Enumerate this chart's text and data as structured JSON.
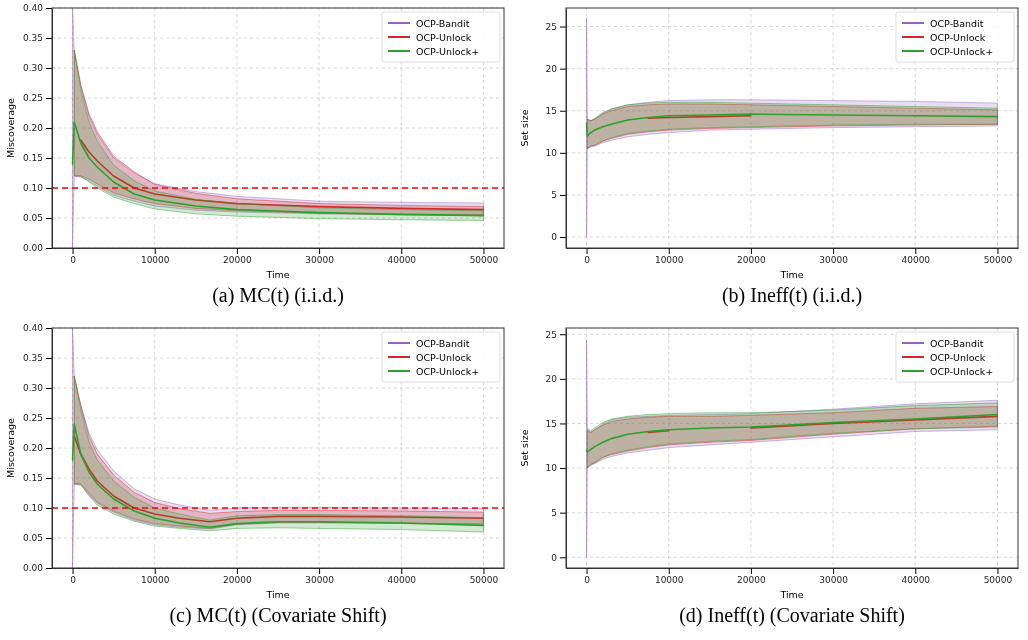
{
  "chart_data": [
    {
      "type": "line",
      "title": "(a) MC(t) (i.i.d.)",
      "xlabel": "Time",
      "ylabel": "Miscoverage",
      "xlim": [
        -2500,
        52500
      ],
      "xticks": [
        0,
        10000,
        20000,
        30000,
        40000,
        50000
      ],
      "ylim": [
        0,
        0.4
      ],
      "yticks": [
        {
          "value": 0,
          "label": "0.00"
        },
        {
          "value": 0.05,
          "label": "0.05"
        },
        {
          "value": 0.1,
          "label": "0.10"
        },
        {
          "value": 0.15,
          "label": "0.15"
        },
        {
          "value": 0.2,
          "label": "0.20"
        },
        {
          "value": 0.25,
          "label": "0.25"
        },
        {
          "value": 0.3,
          "label": "0.30"
        },
        {
          "value": 0.35,
          "label": "0.35"
        },
        {
          "value": 0.4,
          "label": "0.40"
        }
      ],
      "grid": true,
      "legend": "top right",
      "ref_lines": [
        {
          "axis": "y",
          "value": 0.1,
          "color": "#ff0000",
          "line_style": "dashed"
        }
      ],
      "x": [
        0,
        200,
        1000,
        2000,
        3000,
        5000,
        7500,
        10000,
        15000,
        20000,
        30000,
        40000,
        50000
      ],
      "series": [
        {
          "name": "OCP-Bandit",
          "color": "#9467bd",
          "values": [
            null,
            null,
            null,
            null,
            null,
            null,
            null,
            null,
            null,
            null,
            null,
            null,
            null
          ],
          "lower": [
            0,
            0.12,
            0.118,
            0.112,
            0.103,
            0.088,
            0.078,
            0.07,
            0.063,
            0.06,
            0.057,
            0.055,
            0.054
          ],
          "upper": [
            0.4,
            0.33,
            0.27,
            0.22,
            0.19,
            0.15,
            0.125,
            0.107,
            0.094,
            0.086,
            0.078,
            0.076,
            0.075
          ]
        },
        {
          "name": "OCP-Unlock",
          "color": "#d62728",
          "values": [
            null,
            null,
            0.18,
            0.16,
            0.145,
            0.12,
            0.1,
            0.09,
            0.08,
            0.074,
            0.069,
            0.066,
            0.064
          ],
          "lower": [
            null,
            0.12,
            0.12,
            0.115,
            0.107,
            0.092,
            0.082,
            0.074,
            0.066,
            0.062,
            0.058,
            0.056,
            0.056
          ],
          "upper": [
            null,
            0.33,
            0.272,
            0.224,
            0.194,
            0.153,
            0.127,
            0.106,
            0.091,
            0.082,
            0.074,
            0.071,
            0.069
          ]
        },
        {
          "name": "OCP-Unlock+",
          "color": "#2ca02c",
          "values": [
            0.14,
            0.21,
            0.175,
            0.15,
            0.135,
            0.11,
            0.09,
            0.08,
            0.07,
            0.064,
            0.059,
            0.056,
            0.054
          ],
          "lower": [
            null,
            0.12,
            0.12,
            0.11,
            0.1,
            0.085,
            0.074,
            0.065,
            0.057,
            0.053,
            0.049,
            0.047,
            0.046
          ],
          "upper": [
            null,
            0.33,
            0.265,
            0.21,
            0.178,
            0.138,
            0.112,
            0.095,
            0.081,
            0.074,
            0.067,
            0.064,
            0.062
          ]
        }
      ]
    },
    {
      "type": "line",
      "title": "(b) Ineff(t) (i.i.d.)",
      "xlabel": "Time",
      "ylabel": "Set size",
      "xlim": [
        -2500,
        52500
      ],
      "xticks": [
        0,
        10000,
        20000,
        30000,
        40000,
        50000
      ],
      "ylim": [
        -1.3,
        27.2
      ],
      "yticks": [
        0,
        5,
        10,
        15,
        20,
        25
      ],
      "grid": true,
      "legend": "top right",
      "x": [
        0,
        100,
        500,
        1000,
        2000,
        3000,
        5000,
        7500,
        10000,
        15000,
        20000,
        30000,
        40000,
        50000
      ],
      "series": [
        {
          "name": "OCP-Bandit",
          "color": "#9467bd",
          "values": [
            null,
            null,
            null,
            null,
            null,
            null,
            null,
            null,
            null,
            null,
            null,
            null,
            null,
            null
          ],
          "lower": [
            0,
            10.5,
            10.7,
            10.8,
            11.2,
            11.5,
            11.9,
            12.2,
            12.4,
            12.7,
            12.8,
            13,
            13.1,
            13.2
          ],
          "upper": [
            26,
            14,
            13.8,
            14,
            14.7,
            15.2,
            15.7,
            16,
            16.2,
            16.3,
            16.3,
            16.2,
            16.1,
            15.9
          ]
        },
        {
          "name": "OCP-Unlock",
          "color": "#d62728",
          "values": [
            null,
            null,
            null,
            null,
            null,
            null,
            null,
            14.1,
            14.2,
            14.3,
            14.4,
            null,
            null,
            null
          ],
          "lower": [
            null,
            10.5,
            10.8,
            10.9,
            11.4,
            11.7,
            12.2,
            12.5,
            12.7,
            12.9,
            13,
            13.2,
            13.3,
            13.4
          ],
          "upper": [
            null,
            14,
            13.8,
            14,
            14.6,
            15,
            15.5,
            15.7,
            15.8,
            15.8,
            15.7,
            15.5,
            15.3,
            15.1
          ]
        },
        {
          "name": "OCP-Unlock+",
          "color": "#2ca02c",
          "values": [
            13.5,
            12,
            12.4,
            12.7,
            13.1,
            13.4,
            13.9,
            14.2,
            14.4,
            14.5,
            14.6,
            14.5,
            14.4,
            14.3
          ],
          "lower": [
            null,
            10.5,
            10.8,
            10.9,
            11.4,
            11.8,
            12.3,
            12.6,
            12.8,
            13,
            13.1,
            13.3,
            13.4,
            13.4
          ],
          "upper": [
            null,
            14,
            13.8,
            14.1,
            14.8,
            15.2,
            15.7,
            15.9,
            16,
            16,
            15.9,
            15.7,
            15.5,
            15.3
          ]
        }
      ]
    },
    {
      "type": "line",
      "title": "(c) MC(t) (Covariate Shift)",
      "xlabel": "Time",
      "ylabel": "Miscoverage",
      "xlim": [
        -2500,
        52500
      ],
      "xticks": [
        0,
        10000,
        20000,
        30000,
        40000,
        50000
      ],
      "ylim": [
        0,
        0.4
      ],
      "yticks": [
        {
          "value": 0,
          "label": "0.00"
        },
        {
          "value": 0.05,
          "label": "0.05"
        },
        {
          "value": 0.1,
          "label": "0.10"
        },
        {
          "value": 0.15,
          "label": "0.15"
        },
        {
          "value": 0.2,
          "label": "0.20"
        },
        {
          "value": 0.25,
          "label": "0.25"
        },
        {
          "value": 0.3,
          "label": "0.30"
        },
        {
          "value": 0.35,
          "label": "0.35"
        },
        {
          "value": 0.4,
          "label": "0.40"
        }
      ],
      "grid": true,
      "legend": "top right",
      "ref_lines": [
        {
          "axis": "y",
          "value": 0.1,
          "color": "#ff0000",
          "line_style": "dashed"
        }
      ],
      "x": [
        0,
        200,
        1000,
        2000,
        3000,
        5000,
        7500,
        10000,
        13000,
        16700,
        20000,
        25000,
        30000,
        40000,
        50000
      ],
      "series": [
        {
          "name": "OCP-Bandit",
          "color": "#9467bd",
          "values": [
            null,
            null,
            null,
            null,
            null,
            null,
            null,
            null,
            null,
            null,
            null,
            null,
            null,
            null,
            null
          ],
          "lower": [
            0,
            0.14,
            0.138,
            0.122,
            0.108,
            0.093,
            0.08,
            0.072,
            0.068,
            0.065,
            0.072,
            0.075,
            0.075,
            0.074,
            0.073
          ],
          "upper": [
            0.4,
            0.32,
            0.27,
            0.225,
            0.197,
            0.162,
            0.132,
            0.115,
            0.105,
            0.096,
            0.1,
            0.101,
            0.101,
            0.1,
            0.099
          ]
        },
        {
          "name": "OCP-Unlock",
          "color": "#d62728",
          "values": [
            null,
            0.22,
            0.19,
            0.165,
            0.145,
            0.12,
            0.1,
            0.09,
            0.083,
            0.077,
            0.083,
            0.086,
            0.086,
            0.085,
            0.083
          ],
          "lower": [
            null,
            0.14,
            0.14,
            0.125,
            0.11,
            0.095,
            0.082,
            0.074,
            0.07,
            0.066,
            0.073,
            0.076,
            0.076,
            0.075,
            0.073
          ],
          "upper": [
            null,
            0.32,
            0.272,
            0.22,
            0.19,
            0.155,
            0.126,
            0.109,
            0.099,
            0.091,
            0.094,
            0.096,
            0.096,
            0.095,
            0.093
          ]
        },
        {
          "name": "OCP-Unlock+",
          "color": "#2ca02c",
          "values": [
            0.18,
            0.24,
            0.19,
            0.16,
            0.14,
            0.115,
            0.095,
            0.083,
            0.075,
            0.068,
            0.074,
            0.077,
            0.077,
            0.075,
            0.071
          ],
          "lower": [
            null,
            0.14,
            0.14,
            0.12,
            0.105,
            0.09,
            0.078,
            0.07,
            0.066,
            0.062,
            0.066,
            0.067,
            0.066,
            0.064,
            0.06
          ],
          "upper": [
            null,
            0.32,
            0.265,
            0.21,
            0.18,
            0.145,
            0.118,
            0.1,
            0.09,
            0.08,
            0.087,
            0.089,
            0.089,
            0.087,
            0.084
          ]
        }
      ]
    },
    {
      "type": "line",
      "title": "(d) Ineff(t) (Covariate Shift)",
      "xlabel": "Time",
      "ylabel": "Set size",
      "xlim": [
        -2500,
        52500
      ],
      "xticks": [
        0,
        10000,
        20000,
        30000,
        40000,
        50000
      ],
      "ylim": [
        -1.2,
        25.7
      ],
      "yticks": [
        0,
        5,
        10,
        15,
        20,
        25
      ],
      "grid": true,
      "legend": "top right",
      "x": [
        0,
        100,
        500,
        1000,
        2000,
        3000,
        5000,
        7500,
        10000,
        15000,
        20000,
        30000,
        40000,
        50000
      ],
      "series": [
        {
          "name": "OCP-Bandit",
          "color": "#9467bd",
          "values": [
            null,
            null,
            null,
            null,
            null,
            null,
            null,
            null,
            null,
            null,
            null,
            null,
            null,
            null
          ],
          "lower": [
            0,
            10,
            10.3,
            10.5,
            11,
            11.3,
            11.7,
            12,
            12.3,
            12.6,
            12.9,
            13.5,
            14.1,
            14.3
          ],
          "upper": [
            24.4,
            14.2,
            14,
            14.3,
            14.9,
            15.4,
            15.7,
            15.8,
            15.9,
            16,
            16.1,
            16.6,
            17.2,
            17.6
          ]
        },
        {
          "name": "OCP-Unlock",
          "color": "#d62728",
          "values": [
            null,
            null,
            null,
            null,
            null,
            null,
            null,
            14,
            14.2,
            null,
            14.5,
            15,
            15.4,
            15.8
          ],
          "lower": [
            null,
            10,
            10.4,
            10.6,
            11.2,
            11.5,
            11.9,
            12.3,
            12.6,
            12.9,
            13.1,
            13.8,
            14.4,
            14.7
          ],
          "upper": [
            null,
            14.2,
            14,
            14.3,
            14.8,
            15.2,
            15.5,
            15.7,
            15.8,
            15.8,
            15.9,
            16.2,
            16.7,
            16.9
          ]
        },
        {
          "name": "OCP-Unlock+",
          "color": "#2ca02c",
          "values": [
            12,
            11.8,
            12.1,
            12.4,
            12.9,
            13.3,
            13.8,
            14.1,
            14.3,
            14.5,
            14.6,
            15.1,
            15.5,
            16
          ],
          "lower": [
            null,
            10,
            10.4,
            10.6,
            11.2,
            11.6,
            12,
            12.4,
            12.7,
            13,
            13.2,
            13.9,
            14.4,
            14.6
          ],
          "upper": [
            null,
            14.4,
            14.2,
            14.5,
            15.1,
            15.5,
            15.8,
            16,
            16.1,
            16.2,
            16.2,
            16.5,
            17,
            17.3
          ]
        }
      ]
    }
  ]
}
